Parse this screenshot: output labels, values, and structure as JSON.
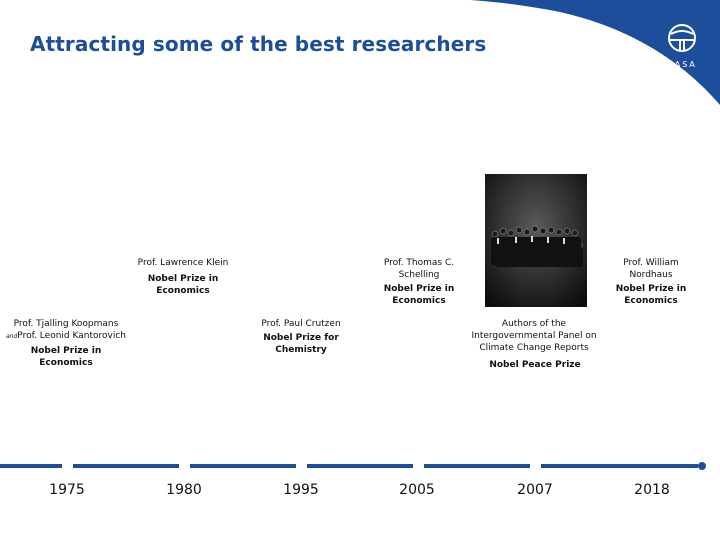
{
  "title": "Attracting some of the best researchers",
  "logo_text": "IIASA",
  "entries": [
    {
      "person": "Prof. Tjalling Koopmans",
      "and_word": "and",
      "person2": "Prof. Leonid Kantorovich",
      "prize": "Nobel Prize in Economics"
    },
    {
      "person": "Prof. Lawrence Klein",
      "prize": "Nobel Prize in Economics"
    },
    {
      "person": "Prof. Paul Crutzen",
      "prize": "Nobel Prize for Chemistry"
    },
    {
      "person": "Prof. Thomas C. Schelling",
      "prize": "Nobel Prize in Economics"
    },
    {
      "person": "Authors of the Intergovernmental Panel on Climate Change Reports",
      "prize": "Nobel Peace Prize"
    },
    {
      "person": "Prof. William Nordhaus",
      "prize": "Nobel Prize in Economics"
    }
  ],
  "years": [
    "1975",
    "1980",
    "1995",
    "2005",
    "2007",
    "2018"
  ],
  "colors": {
    "title": "#1c4e9c",
    "swoosh": "#1c4e9c",
    "timeline": "#1c4e9c"
  }
}
